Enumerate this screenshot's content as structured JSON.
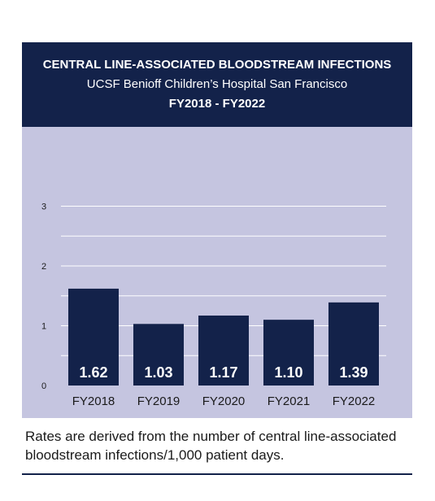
{
  "header": {
    "title": "CENTRAL LINE-ASSOCIATED BLOODSTREAM INFECTIONS",
    "subtitle": "UCSF Benioff Children’s Hospital San Francisco",
    "range": "FY2018 - FY2022"
  },
  "chart_data": {
    "type": "bar",
    "title": "CENTRAL LINE-ASSOCIATED BLOODSTREAM INFECTIONS",
    "subtitle": "UCSF Benioff Children’s Hospital San Francisco",
    "categories": [
      "FY2018",
      "FY2019",
      "FY2020",
      "FY2021",
      "FY2022"
    ],
    "values": [
      1.62,
      1.03,
      1.17,
      1.1,
      1.39
    ],
    "data_labels": [
      "1.62",
      "1.03",
      "1.17",
      "1.10",
      "1.39"
    ],
    "yticks": [
      0,
      1,
      2,
      3
    ],
    "ylim": [
      0,
      3.25
    ],
    "grid": true,
    "legend": "none",
    "bar_color": "#13224a",
    "background_color": "#c5c5e0",
    "label_color": "#ffffff"
  },
  "footnote": "Rates are derived from the number of central line-associated bloodstream infections/1,000 patient days."
}
